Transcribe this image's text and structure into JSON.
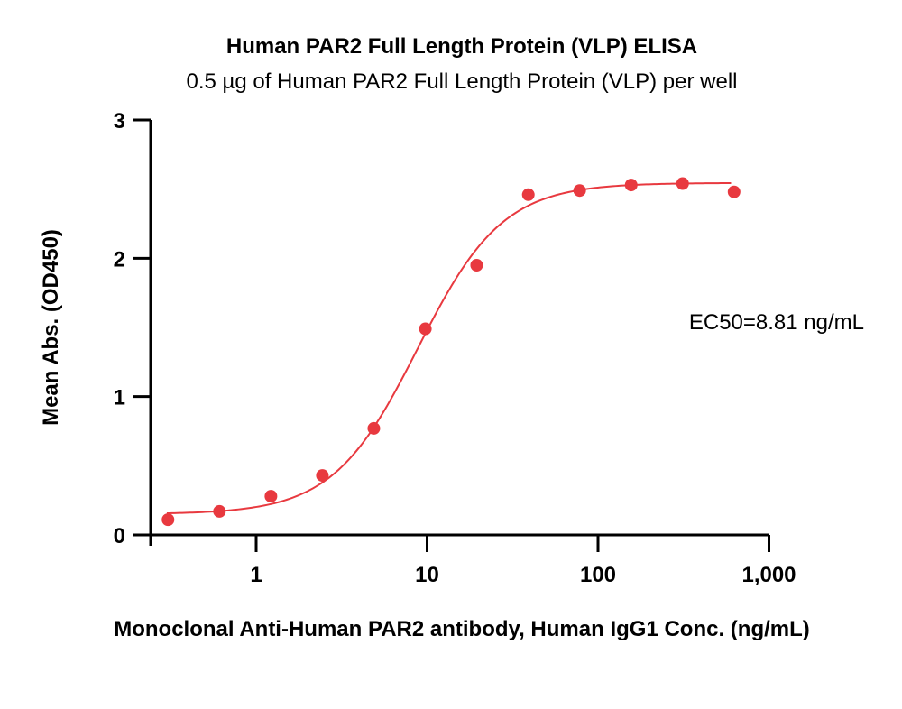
{
  "chart_data": {
    "type": "scatter",
    "title": "Human PAR2 Full Length Protein (VLP) ELISA",
    "subtitle": "0.5 µg of Human PAR2 Full Length Protein (VLP) per well",
    "xlabel": "Monoclonal Anti-Human PAR2 antibody, Human IgG1 Conc. (ng/mL)",
    "ylabel": "Mean Abs. (OD450)",
    "xscale": "log",
    "xlim": [
      0.25,
      1000
    ],
    "ylim": [
      0,
      3
    ],
    "x_ticks": [
      {
        "value": 1,
        "label": "1"
      },
      {
        "value": 10,
        "label": "10"
      },
      {
        "value": 100,
        "label": "100"
      },
      {
        "value": 1000,
        "label": "1,000"
      }
    ],
    "y_ticks": [
      {
        "value": 0,
        "label": "0"
      },
      {
        "value": 1,
        "label": "1"
      },
      {
        "value": 2,
        "label": "2"
      },
      {
        "value": 3,
        "label": "3"
      }
    ],
    "grid": false,
    "color": "#e8393f",
    "series": [
      {
        "name": "Monoclonal Anti-Human PAR2 antibody, Human IgG1",
        "x": [
          0.305,
          0.61,
          1.22,
          2.44,
          4.88,
          9.77,
          19.5,
          39.1,
          78.1,
          156.3,
          312.5,
          625
        ],
        "y": [
          0.11,
          0.17,
          0.28,
          0.43,
          0.77,
          1.49,
          1.95,
          2.46,
          2.49,
          2.53,
          2.54,
          2.48
        ]
      }
    ],
    "fit": {
      "model": "4PL",
      "bottom": 0.15,
      "top": 2.545,
      "ec50": 8.81,
      "hill": 1.75,
      "x_range": [
        0.3,
        600
      ]
    },
    "annotation": "EC50=8.81 ng/mL"
  }
}
